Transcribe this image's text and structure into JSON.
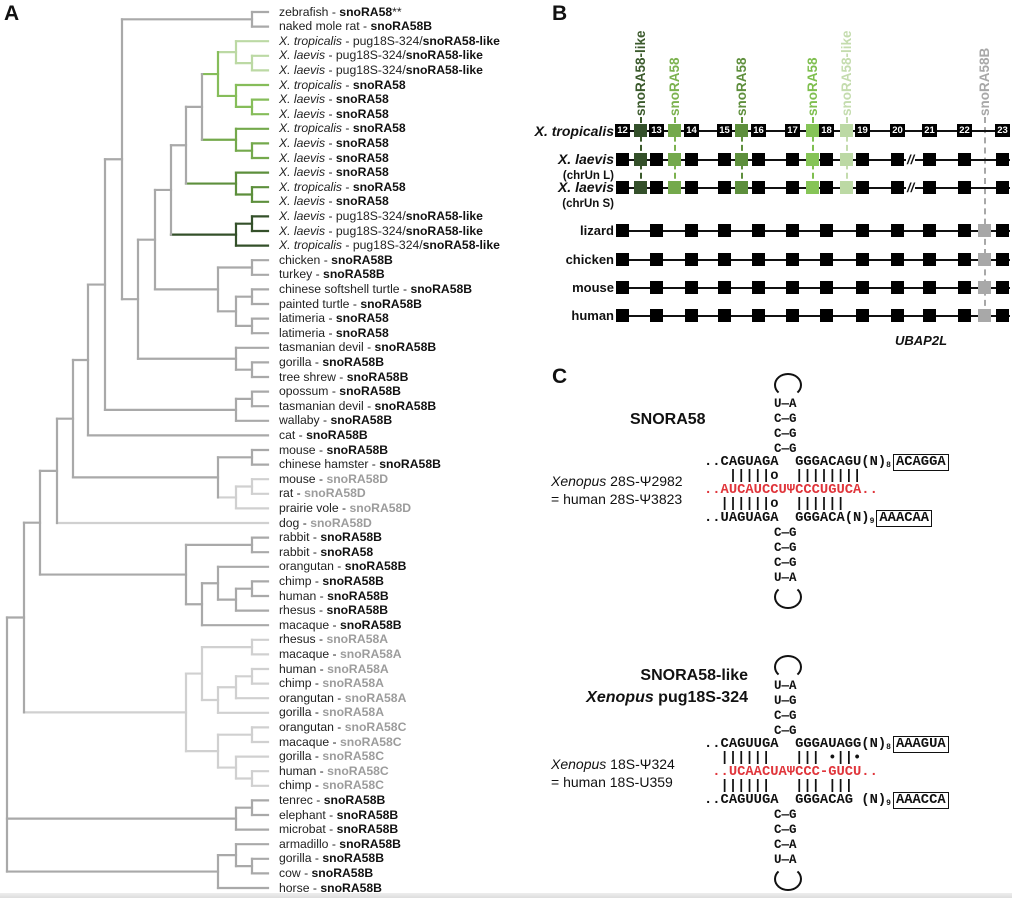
{
  "panels": {
    "a": "A",
    "b": "B",
    "c": "C"
  },
  "colors": {
    "tree_gray": "#a9a9a9",
    "tree_light_gray": "#d0d0d0",
    "gene_gray": "#9c9c9c",
    "snoRA58_like_light": "#bcd9a4",
    "snoRA58_a": "#86bd5a",
    "snoRA58_b": "#74a94c",
    "snoRA58_c": "#5d8f3c",
    "snoRA58_like_dark": "#34502a",
    "psi_red": "#e0353b"
  },
  "tree": {
    "leaves": [
      {
        "species": "zebrafish",
        "italic": false,
        "prefix": "",
        "gene": "snoRA58",
        "suffix": "**",
        "muted": false
      },
      {
        "species": "naked mole rat",
        "italic": false,
        "prefix": "",
        "gene": "snoRA58B",
        "suffix": "",
        "muted": false
      },
      {
        "species": "X. tropicalis",
        "italic": true,
        "prefix": "pug18S-324/",
        "gene": "snoRA58-like",
        "suffix": "",
        "muted": false
      },
      {
        "species": "X. laevis",
        "italic": true,
        "prefix": "pug18S-324/",
        "gene": "snoRA58-like",
        "suffix": "",
        "muted": false
      },
      {
        "species": "X. laevis",
        "italic": true,
        "prefix": "pug18S-324/",
        "gene": "snoRA58-like",
        "suffix": "",
        "muted": false
      },
      {
        "species": "X. tropicalis",
        "italic": true,
        "prefix": "",
        "gene": "snoRA58",
        "suffix": "",
        "muted": false
      },
      {
        "species": "X. laevis",
        "italic": true,
        "prefix": "",
        "gene": "snoRA58",
        "suffix": "",
        "muted": false
      },
      {
        "species": "X. laevis",
        "italic": true,
        "prefix": "",
        "gene": "snoRA58",
        "suffix": "",
        "muted": false
      },
      {
        "species": "X. tropicalis",
        "italic": true,
        "prefix": "",
        "gene": "snoRA58",
        "suffix": "",
        "muted": false
      },
      {
        "species": "X. laevis",
        "italic": true,
        "prefix": "",
        "gene": "snoRA58",
        "suffix": "",
        "muted": false
      },
      {
        "species": "X. laevis",
        "italic": true,
        "prefix": "",
        "gene": "snoRA58",
        "suffix": "",
        "muted": false
      },
      {
        "species": "X. laevis",
        "italic": true,
        "prefix": "",
        "gene": "snoRA58",
        "suffix": "",
        "muted": false
      },
      {
        "species": "X. tropicalis",
        "italic": true,
        "prefix": "",
        "gene": "snoRA58",
        "suffix": "",
        "muted": false
      },
      {
        "species": "X. laevis",
        "italic": true,
        "prefix": "",
        "gene": "snoRA58",
        "suffix": "",
        "muted": false
      },
      {
        "species": "X. laevis",
        "italic": true,
        "prefix": "pug18S-324/",
        "gene": "snoRA58-like",
        "suffix": "",
        "muted": false
      },
      {
        "species": "X. laevis",
        "italic": true,
        "prefix": "pug18S-324/",
        "gene": "snoRA58-like",
        "suffix": "",
        "muted": false
      },
      {
        "species": "X. tropicalis",
        "italic": true,
        "prefix": "pug18S-324/",
        "gene": "snoRA58-like",
        "suffix": "",
        "muted": false
      },
      {
        "species": "chicken",
        "italic": false,
        "prefix": "",
        "gene": "snoRA58B",
        "suffix": "",
        "muted": false
      },
      {
        "species": "turkey",
        "italic": false,
        "prefix": "",
        "gene": "snoRA58B",
        "suffix": "",
        "muted": false
      },
      {
        "species": "chinese softshell turtle",
        "italic": false,
        "prefix": "",
        "gene": "snoRA58B",
        "suffix": "",
        "muted": false
      },
      {
        "species": "painted turtle",
        "italic": false,
        "prefix": "",
        "gene": "snoRA58B",
        "suffix": "",
        "muted": false
      },
      {
        "species": "latimeria",
        "italic": false,
        "prefix": "",
        "gene": "snoRA58",
        "suffix": "",
        "muted": false
      },
      {
        "species": "latimeria",
        "italic": false,
        "prefix": "",
        "gene": "snoRA58",
        "suffix": "",
        "muted": false
      },
      {
        "species": "tasmanian devil",
        "italic": false,
        "prefix": "",
        "gene": "snoRA58B",
        "suffix": "",
        "muted": false
      },
      {
        "species": "gorilla",
        "italic": false,
        "prefix": "",
        "gene": "snoRA58B",
        "suffix": "",
        "muted": false
      },
      {
        "species": "tree shrew",
        "italic": false,
        "prefix": "",
        "gene": "snoRA58B",
        "suffix": "",
        "muted": false
      },
      {
        "species": "opossum",
        "italic": false,
        "prefix": "",
        "gene": "snoRA58B",
        "suffix": "",
        "muted": false
      },
      {
        "species": "tasmanian devil",
        "italic": false,
        "prefix": "",
        "gene": "snoRA58B",
        "suffix": "",
        "muted": false
      },
      {
        "species": "wallaby",
        "italic": false,
        "prefix": "",
        "gene": "snoRA58B",
        "suffix": "",
        "muted": false
      },
      {
        "species": "cat",
        "italic": false,
        "prefix": "",
        "gene": "snoRA58B",
        "suffix": "",
        "muted": false
      },
      {
        "species": "mouse",
        "italic": false,
        "prefix": "",
        "gene": "snoRA58B",
        "suffix": "",
        "muted": false
      },
      {
        "species": "chinese hamster",
        "italic": false,
        "prefix": "",
        "gene": "snoRA58B",
        "suffix": "",
        "muted": false
      },
      {
        "species": "mouse",
        "italic": false,
        "prefix": "",
        "gene": "snoRA58D",
        "suffix": "",
        "muted": true
      },
      {
        "species": "rat",
        "italic": false,
        "prefix": "",
        "gene": "snoRA58D",
        "suffix": "",
        "muted": true
      },
      {
        "species": "prairie vole",
        "italic": false,
        "prefix": "",
        "gene": "snoRA58D",
        "suffix": "",
        "muted": true
      },
      {
        "species": "dog",
        "italic": false,
        "prefix": "",
        "gene": "snoRA58D",
        "suffix": "",
        "muted": true
      },
      {
        "species": "rabbit",
        "italic": false,
        "prefix": "",
        "gene": "snoRA58B",
        "suffix": "",
        "muted": false
      },
      {
        "species": "rabbit",
        "italic": false,
        "prefix": "",
        "gene": "snoRA58",
        "suffix": "",
        "muted": false
      },
      {
        "species": "orangutan",
        "italic": false,
        "prefix": "",
        "gene": "snoRA58B",
        "suffix": "",
        "muted": false
      },
      {
        "species": "chimp",
        "italic": false,
        "prefix": "",
        "gene": "snoRA58B",
        "suffix": "",
        "muted": false
      },
      {
        "species": "human",
        "italic": false,
        "prefix": "",
        "gene": "snoRA58B",
        "suffix": "",
        "muted": false
      },
      {
        "species": "rhesus",
        "italic": false,
        "prefix": "",
        "gene": "snoRA58B",
        "suffix": "",
        "muted": false
      },
      {
        "species": "macaque",
        "italic": false,
        "prefix": "",
        "gene": "snoRA58B",
        "suffix": "",
        "muted": false
      },
      {
        "species": "rhesus",
        "italic": false,
        "prefix": "",
        "gene": "snoRA58A",
        "suffix": "",
        "muted": true
      },
      {
        "species": "macaque",
        "italic": false,
        "prefix": "",
        "gene": "snoRA58A",
        "suffix": "",
        "muted": true
      },
      {
        "species": "human",
        "italic": false,
        "prefix": "",
        "gene": "snoRA58A",
        "suffix": "",
        "muted": true
      },
      {
        "species": "chimp",
        "italic": false,
        "prefix": "",
        "gene": "snoRA58A",
        "suffix": "",
        "muted": true
      },
      {
        "species": "orangutan",
        "italic": false,
        "prefix": "",
        "gene": "snoRA58A",
        "suffix": "",
        "muted": true
      },
      {
        "species": "gorilla",
        "italic": false,
        "prefix": "",
        "gene": "snoRA58A",
        "suffix": "",
        "muted": true
      },
      {
        "species": "orangutan",
        "italic": false,
        "prefix": "",
        "gene": "snoRA58C",
        "suffix": "",
        "muted": true
      },
      {
        "species": "macaque",
        "italic": false,
        "prefix": "",
        "gene": "snoRA58C",
        "suffix": "",
        "muted": true
      },
      {
        "species": "gorilla",
        "italic": false,
        "prefix": "",
        "gene": "snoRA58C",
        "suffix": "",
        "muted": true
      },
      {
        "species": "human",
        "italic": false,
        "prefix": "",
        "gene": "snoRA58C",
        "suffix": "",
        "muted": true
      },
      {
        "species": "chimp",
        "italic": false,
        "prefix": "",
        "gene": "snoRA58C",
        "suffix": "",
        "muted": true
      },
      {
        "species": "tenrec",
        "italic": false,
        "prefix": "",
        "gene": "snoRA58B",
        "suffix": "",
        "muted": false
      },
      {
        "species": "elephant",
        "italic": false,
        "prefix": "",
        "gene": "snoRA58B",
        "suffix": "",
        "muted": false
      },
      {
        "species": "microbat",
        "italic": false,
        "prefix": "",
        "gene": "snoRA58B",
        "suffix": "",
        "muted": false
      },
      {
        "species": "armadillo",
        "italic": false,
        "prefix": "",
        "gene": "snoRA58B",
        "suffix": "",
        "muted": false
      },
      {
        "species": "gorilla",
        "italic": false,
        "prefix": "",
        "gene": "snoRA58B",
        "suffix": "",
        "muted": false
      },
      {
        "species": "cow",
        "italic": false,
        "prefix": "",
        "gene": "snoRA58B",
        "suffix": "",
        "muted": false
      },
      {
        "species": "horse",
        "italic": false,
        "prefix": "",
        "gene": "snoRA58B",
        "suffix": "",
        "muted": false
      }
    ],
    "separator": " - "
  },
  "locus": {
    "snorna_labels": [
      {
        "text": "snoRA58-like",
        "color": "#3b5a2c"
      },
      {
        "text": "snoRA58",
        "color": "#7cb24f"
      },
      {
        "text": "snoRA58",
        "color": "#5f8f3d"
      },
      {
        "text": "snoRA58",
        "color": "#7fbf4f"
      },
      {
        "text": "snoRA58-like",
        "color": "#c4dcae"
      },
      {
        "text": "snoRA58B",
        "color": "#a8a8a8"
      }
    ],
    "exon_numbers": [
      "12",
      "13",
      "14",
      "15",
      "16",
      "17",
      "18",
      "19",
      "20",
      "21",
      "22",
      "23"
    ],
    "rows": [
      {
        "label": "X. tropicalis",
        "sub": "",
        "italic": true
      },
      {
        "label": "X. laevis",
        "sub": "(chrUn L)",
        "italic": true
      },
      {
        "label": "X. laevis",
        "sub": "(chrUn S)",
        "italic": true
      },
      {
        "label": "lizard",
        "sub": "",
        "italic": false
      },
      {
        "label": "chicken",
        "sub": "",
        "italic": false
      },
      {
        "label": "mouse",
        "sub": "",
        "italic": false
      },
      {
        "label": "human",
        "sub": "",
        "italic": false
      }
    ],
    "break_mark": "//",
    "gene_name": "UBAP2L"
  },
  "structures": [
    {
      "title": "SNORA58",
      "subtitle_italic": "",
      "subtitle": "",
      "target_line1_italic": "Xenopus",
      "target_line1": " 28S-Ψ2982",
      "target_line2": "= human 28S-Ψ3823",
      "top_stem": [
        "U—A",
        "C—G",
        "C—G",
        "C—G"
      ],
      "top_strand": "..CAGUAGA  GGGACAGU(N)",
      "top_n": "8",
      "top_box": "ACAGGA",
      "top_pairs": "   |||||o  ||||||||",
      "rrna": "..AUCAUCCUΨCCCUGUCA..",
      "bottom_pairs": "  ||||||o  ||||||",
      "bottom_strand": "..UAGUAGA  GGGACA(N)",
      "bottom_n": "9",
      "bottom_box": "AAACAA",
      "bottom_stem": [
        "C—G",
        "C—G",
        "C—G",
        "U—A"
      ]
    },
    {
      "title": "SNORA58-like",
      "subtitle_italic": "Xenopus",
      "subtitle": " pug18S-324",
      "target_line1_italic": "Xenopus",
      "target_line1": " 18S-Ψ324",
      "target_line2": "= human 18S-U359",
      "top_stem": [
        "U—A",
        "U—G",
        "C—G",
        "C—G"
      ],
      "top_strand": "..CAGUUGA  GGGAUAGG(N)",
      "top_n": "8",
      "top_box": "AAAGUA",
      "top_pairs": "  ||||||   ||| •||•",
      "rrna": " ..UCAACUAΨCCC-GUCU..",
      "bottom_pairs": "  ||||||   ||| |||",
      "bottom_strand": "..CAGUUGA  GGGACAG (N)",
      "bottom_n": "9",
      "bottom_box": "AAACCA",
      "bottom_stem": [
        "C—G",
        "C—G",
        "C—A",
        "U—A"
      ]
    }
  ]
}
